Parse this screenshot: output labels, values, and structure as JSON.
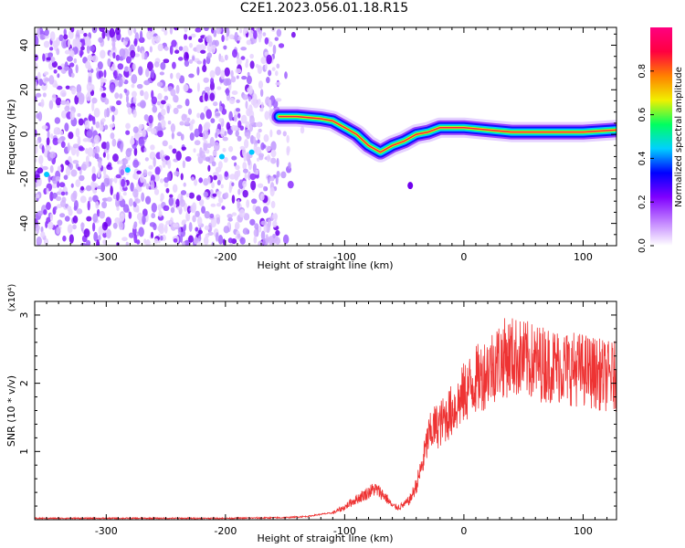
{
  "title": "C2E1.2023.056.01.18.R15",
  "chart_data": [
    {
      "type": "heatmap",
      "xlabel": "Height of straight line (km)",
      "ylabel": "Frequency (Hz)",
      "xlim": [
        -360,
        128
      ],
      "ylim": [
        -50,
        48
      ],
      "x_ticks": [
        -300,
        -200,
        -100,
        0,
        100
      ],
      "y_ticks": [
        -40,
        -20,
        0,
        20,
        40
      ],
      "colorbar": {
        "label": "Normalized spectral amplitude",
        "range": [
          0,
          1
        ],
        "ticks": [
          "0.0",
          "0.2",
          "0.4",
          "0.6",
          "0.8"
        ],
        "colors": [
          "#ffffff",
          "#c080ff",
          "#8000ff",
          "#0000ff",
          "#00d0ff",
          "#00ff60",
          "#f0f000",
          "#ff8000",
          "#ff0040",
          "#ff0080"
        ]
      },
      "noise_region_x": [
        -360,
        -155
      ],
      "ridge": {
        "x": [
          -155,
          -140,
          -120,
          -110,
          -100,
          -90,
          -80,
          -70,
          -60,
          -50,
          -40,
          -30,
          -20,
          -10,
          0,
          20,
          40,
          60,
          80,
          100,
          128
        ],
        "y": [
          8,
          8,
          7,
          6,
          3,
          0,
          -5,
          -8,
          -5,
          -3,
          0,
          1,
          3,
          3,
          3,
          2,
          1,
          1,
          1,
          1,
          2
        ]
      }
    },
    {
      "type": "line",
      "xlabel": "Height of straight line (km)",
      "ylabel": "SNR (10 * v/v)",
      "y_multiplier": "(x10⁴)",
      "xlim": [
        -360,
        128
      ],
      "ylim": [
        0,
        3.2
      ],
      "x_ticks": [
        -300,
        -200,
        -100,
        0,
        100
      ],
      "y_ticks": [
        1,
        2,
        3
      ],
      "color": "#ee3333",
      "series": [
        {
          "x": [
            -360,
            -300,
            -200,
            -150,
            -130,
            -120,
            -110,
            -100,
            -95,
            -90,
            -85,
            -80,
            -75,
            -70,
            -65,
            -60,
            -55,
            -50,
            -45,
            -40,
            -35,
            -30,
            -25,
            -20,
            -15,
            -10,
            -5,
            0,
            5,
            10,
            15,
            20,
            30,
            40,
            50,
            60,
            70,
            80,
            90,
            100,
            110,
            120,
            128
          ],
          "y": [
            0.02,
            0.02,
            0.02,
            0.03,
            0.05,
            0.08,
            0.1,
            0.18,
            0.25,
            0.3,
            0.35,
            0.4,
            0.45,
            0.4,
            0.32,
            0.2,
            0.18,
            0.22,
            0.3,
            0.5,
            0.8,
            1.2,
            1.35,
            1.4,
            1.5,
            1.6,
            1.7,
            1.85,
            1.95,
            2.05,
            2.1,
            2.2,
            2.35,
            2.4,
            2.35,
            2.3,
            2.28,
            2.25,
            2.22,
            2.2,
            2.15,
            2.1,
            2.1
          ]
        }
      ]
    }
  ]
}
